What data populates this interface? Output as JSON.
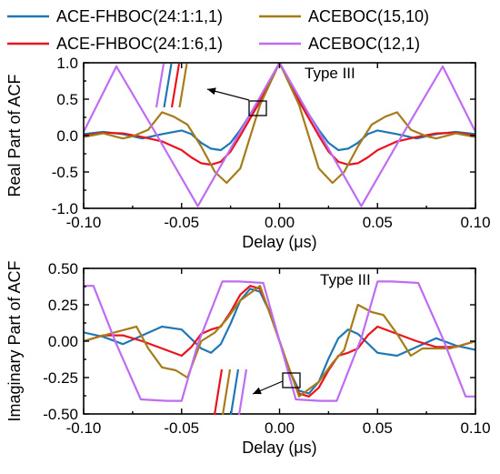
{
  "legend": [
    {
      "name": "ACE-FHBOC(24:1:1,1)",
      "color": "#1f77b4"
    },
    {
      "name": "ACEBOC(15,10)",
      "color": "#a67c1a"
    },
    {
      "name": "ACE-FHBOC(24:1:6,1)",
      "color": "#e8131c"
    },
    {
      "name": "ACEBOC(12,1)",
      "color": "#bf6cf2"
    }
  ],
  "chart_data": [
    {
      "type": "line",
      "id": "real",
      "annotation": "Type III",
      "xlabel": "Delay (μs)",
      "ylabel": "Real Part of ACF",
      "xlim": [
        -0.1,
        0.1
      ],
      "ylim": [
        -1.0,
        1.0
      ],
      "xticks": [
        -0.1,
        -0.05,
        0.0,
        0.05,
        0.1
      ],
      "xtick_labels": [
        "-0.10",
        "-0.05",
        "0.00",
        "0.05",
        "0.10"
      ],
      "yticks": [
        -1.0,
        -0.5,
        0.0,
        0.5,
        1.0
      ],
      "ytick_labels": [
        "-1.0",
        "-0.5",
        "0.0",
        "0.5",
        "1.0"
      ],
      "series": [
        {
          "name": "ACE-FHBOC(24:1:1,1)",
          "color": "#1f77b4",
          "x": [
            -0.1,
            -0.09,
            -0.08,
            -0.07,
            -0.06,
            -0.05,
            -0.045,
            -0.04,
            -0.035,
            -0.03,
            -0.025,
            -0.02,
            -0.01,
            0,
            0.01,
            0.02,
            0.025,
            0.03,
            0.035,
            0.04,
            0.045,
            0.05,
            0.06,
            0.07,
            0.08,
            0.09,
            0.1
          ],
          "y": [
            0.02,
            0.05,
            0.02,
            -0.04,
            0.02,
            0.07,
            0.02,
            -0.1,
            -0.18,
            -0.2,
            -0.1,
            0.08,
            0.5,
            1.0,
            0.5,
            0.08,
            -0.1,
            -0.2,
            -0.18,
            -0.1,
            0.02,
            0.07,
            0.02,
            -0.04,
            0.02,
            0.05,
            0.02
          ]
        },
        {
          "name": "ACE-FHBOC(24:1:6,1)",
          "color": "#e8131c",
          "x": [
            -0.1,
            -0.09,
            -0.08,
            -0.07,
            -0.06,
            -0.05,
            -0.045,
            -0.04,
            -0.035,
            -0.03,
            -0.025,
            -0.02,
            -0.01,
            0,
            0.01,
            0.02,
            0.025,
            0.03,
            0.035,
            0.04,
            0.045,
            0.05,
            0.06,
            0.07,
            0.08,
            0.09,
            0.1
          ],
          "y": [
            0.0,
            0.04,
            0.03,
            -0.02,
            -0.08,
            -0.2,
            -0.3,
            -0.38,
            -0.4,
            -0.36,
            -0.22,
            0.0,
            0.47,
            1.0,
            0.47,
            0.0,
            -0.22,
            -0.36,
            -0.4,
            -0.38,
            -0.3,
            -0.2,
            -0.08,
            -0.02,
            0.03,
            0.04,
            0.0
          ]
        },
        {
          "name": "ACEBOC(15,10)",
          "color": "#a67c1a",
          "x": [
            -0.1,
            -0.09,
            -0.08,
            -0.075,
            -0.067,
            -0.06,
            -0.054,
            -0.047,
            -0.04,
            -0.033,
            -0.027,
            -0.02,
            -0.01,
            0,
            0.01,
            0.02,
            0.027,
            0.033,
            0.04,
            0.047,
            0.054,
            0.06,
            0.067,
            0.075,
            0.08,
            0.09,
            0.1
          ],
          "y": [
            -0.02,
            0.03,
            -0.04,
            -0.01,
            0.08,
            0.32,
            0.26,
            0.15,
            -0.15,
            -0.5,
            -0.65,
            -0.45,
            0.42,
            1.0,
            0.42,
            -0.45,
            -0.65,
            -0.5,
            -0.15,
            0.15,
            0.26,
            0.32,
            0.08,
            -0.01,
            -0.04,
            0.03,
            -0.02
          ]
        },
        {
          "name": "ACEBOC(12,1)",
          "color": "#bf6cf2",
          "x": [
            -0.1,
            -0.0833,
            -0.0625,
            -0.0417,
            0,
            0.0417,
            0.0625,
            0.0833,
            0.1
          ],
          "y": [
            0.05,
            0.95,
            0.0,
            -0.97,
            1.0,
            -0.97,
            0.0,
            0.95,
            0.05
          ]
        }
      ]
    },
    {
      "type": "line",
      "id": "imag",
      "annotation": "Type III",
      "xlabel": "Delay (μs)",
      "ylabel": "Imaginary Part of ACF",
      "xlim": [
        -0.1,
        0.1
      ],
      "ylim": [
        -0.5,
        0.5
      ],
      "xticks": [
        -0.1,
        -0.05,
        0.0,
        0.05,
        0.1
      ],
      "xtick_labels": [
        "-0.10",
        "-0.05",
        "0.00",
        "0.05",
        "0.10"
      ],
      "yticks": [
        -0.5,
        -0.25,
        0.0,
        0.25,
        0.5
      ],
      "ytick_labels": [
        "-0.50",
        "-0.25",
        "0.00",
        "0.25",
        "0.50"
      ],
      "series": [
        {
          "name": "ACE-FHBOC(24:1:1,1)",
          "color": "#1f77b4",
          "x": [
            -0.1,
            -0.09,
            -0.08,
            -0.07,
            -0.06,
            -0.05,
            -0.04,
            -0.035,
            -0.03,
            -0.025,
            -0.02,
            -0.015,
            -0.01,
            -0.005,
            0,
            0.005,
            0.01,
            0.015,
            0.02,
            0.025,
            0.03,
            0.035,
            0.04,
            0.05,
            0.06,
            0.07,
            0.08,
            0.09,
            0.1
          ],
          "y": [
            0.06,
            0.03,
            -0.02,
            0.04,
            0.1,
            0.08,
            -0.05,
            -0.08,
            -0.02,
            0.12,
            0.28,
            0.36,
            0.34,
            0.2,
            0.0,
            -0.2,
            -0.34,
            -0.36,
            -0.28,
            -0.12,
            0.02,
            0.08,
            0.05,
            -0.08,
            -0.1,
            -0.04,
            0.02,
            -0.03,
            -0.06
          ]
        },
        {
          "name": "ACE-FHBOC(24:1:6,1)",
          "color": "#e8131c",
          "x": [
            -0.1,
            -0.09,
            -0.08,
            -0.07,
            -0.06,
            -0.05,
            -0.045,
            -0.04,
            -0.035,
            -0.03,
            -0.025,
            -0.02,
            -0.015,
            -0.01,
            -0.005,
            0,
            0.005,
            0.01,
            0.015,
            0.02,
            0.025,
            0.03,
            0.035,
            0.04,
            0.045,
            0.05,
            0.06,
            0.07,
            0.08,
            0.09,
            0.1
          ],
          "y": [
            0.0,
            0.04,
            0.04,
            0.0,
            -0.05,
            -0.1,
            -0.04,
            0.05,
            0.08,
            0.1,
            0.2,
            0.32,
            0.38,
            0.36,
            0.2,
            0.0,
            -0.2,
            -0.36,
            -0.38,
            -0.32,
            -0.2,
            -0.1,
            -0.08,
            -0.05,
            0.04,
            0.1,
            0.05,
            0.0,
            -0.04,
            -0.04,
            0.0
          ]
        },
        {
          "name": "ACEBOC(15,10)",
          "color": "#a67c1a",
          "x": [
            -0.1,
            -0.087,
            -0.073,
            -0.067,
            -0.06,
            -0.053,
            -0.047,
            -0.04,
            -0.033,
            -0.027,
            -0.02,
            -0.01,
            0,
            0.01,
            0.02,
            0.027,
            0.033,
            0.04,
            0.047,
            0.053,
            0.06,
            0.067,
            0.073,
            0.087,
            0.1
          ],
          "y": [
            0.0,
            0.05,
            0.1,
            -0.05,
            -0.18,
            -0.2,
            -0.25,
            0.0,
            0.06,
            0.15,
            0.28,
            0.38,
            0.0,
            -0.38,
            -0.28,
            -0.15,
            -0.06,
            0.25,
            0.2,
            0.18,
            0.05,
            -0.1,
            -0.05,
            -0.05,
            0.0
          ]
        },
        {
          "name": "ACEBOC(12,1)",
          "color": "#bf6cf2",
          "x": [
            -0.1,
            -0.095,
            -0.0833,
            -0.0708,
            -0.0575,
            -0.05,
            -0.0417,
            -0.0292,
            -0.0208,
            -0.0083,
            0,
            0.0083,
            0.0208,
            0.0292,
            0.0417,
            0.05,
            0.0575,
            0.0708,
            0.0833,
            0.095,
            0.1
          ],
          "y": [
            0.38,
            0.38,
            -0.02,
            -0.4,
            -0.41,
            -0.41,
            -0.02,
            0.41,
            0.41,
            0.4,
            0.0,
            -0.4,
            -0.41,
            -0.41,
            0.02,
            0.41,
            0.41,
            0.4,
            0.02,
            -0.38,
            -0.38
          ]
        }
      ]
    }
  ]
}
